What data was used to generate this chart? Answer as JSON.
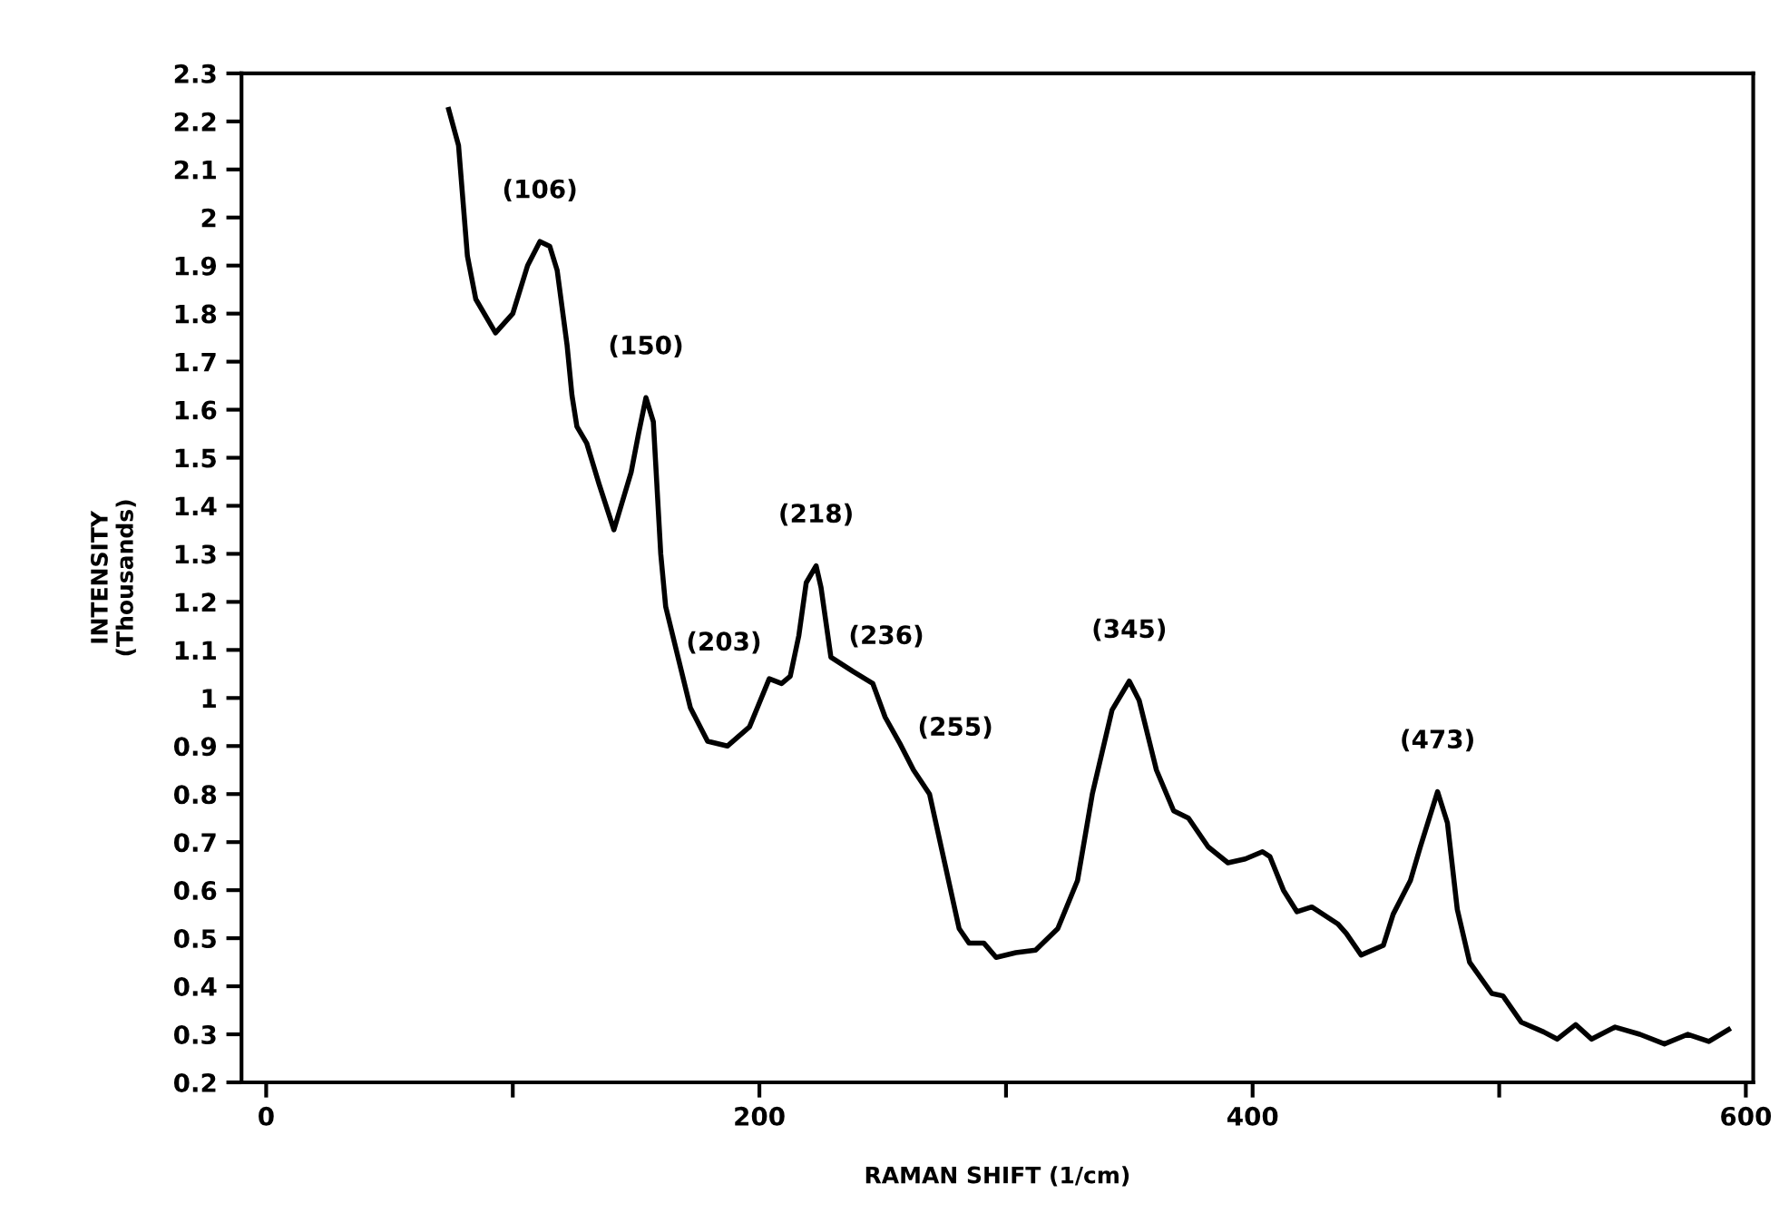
{
  "chart_data": {
    "type": "line",
    "xlabel": "RAMAN SHIFT (1/cm)",
    "ylabel": "INTENSITY\n(Thousands)",
    "xlim": [
      -10,
      603
    ],
    "ylim": [
      0.2,
      2.3
    ],
    "xticks": [
      0,
      {
        "value": 100,
        "label": null
      },
      200,
      {
        "value": 300,
        "label": null
      },
      400,
      {
        "value": 500,
        "label": null
      },
      600
    ],
    "yticks": [
      0.2,
      0.3,
      0.4,
      0.5,
      0.6,
      0.7,
      0.8,
      0.9,
      1,
      1.1,
      1.2,
      1.3,
      1.4,
      1.5,
      1.6,
      1.7,
      1.8,
      1.9,
      2,
      2.1,
      2.2,
      2.3
    ],
    "grid": false,
    "legend": false,
    "marker": "none",
    "line_style": "solid",
    "series": [
      {
        "color": "#000000",
        "x": [
          74,
          78,
          81.6,
          85,
          93,
          100,
          106,
          111,
          115,
          118,
          122,
          124,
          126,
          130,
          135,
          141,
          148,
          151,
          154,
          157,
          160,
          162,
          172,
          179,
          187,
          196,
          204,
          209,
          212.5,
          216,
          219,
          223,
          225,
          229,
          238,
          246,
          251,
          257,
          262.5,
          269,
          275,
          281,
          285,
          291,
          296,
          304,
          312,
          321,
          329,
          335,
          343,
          350,
          354,
          361,
          368,
          374,
          382,
          390,
          397,
          404,
          407,
          412.5,
          418,
          424,
          434.5,
          438,
          444,
          453,
          457,
          464,
          468,
          475,
          479,
          483,
          488,
          497,
          501.5,
          509,
          518,
          523.5,
          531,
          537.5,
          547,
          557,
          567,
          576.5,
          585,
          593
        ],
        "values": [
          2.225,
          2.15,
          1.92,
          1.83,
          1.76,
          1.8,
          1.9,
          1.95,
          1.94,
          1.89,
          1.735,
          1.63,
          1.565,
          1.53,
          1.445,
          1.35,
          1.47,
          1.55,
          1.625,
          1.575,
          1.3,
          1.19,
          0.98,
          0.91,
          0.9,
          0.94,
          1.04,
          1.03,
          1.045,
          1.13,
          1.24,
          1.275,
          1.23,
          1.085,
          1.055,
          1.03,
          0.96,
          0.905,
          0.85,
          0.8,
          0.66,
          0.52,
          0.49,
          0.49,
          0.46,
          0.47,
          0.475,
          0.52,
          0.62,
          0.8,
          0.975,
          1.035,
          0.995,
          0.85,
          0.765,
          0.75,
          0.69,
          0.657,
          0.665,
          0.68,
          0.67,
          0.6,
          0.555,
          0.565,
          0.53,
          0.51,
          0.465,
          0.485,
          0.55,
          0.62,
          0.69,
          0.805,
          0.74,
          0.56,
          0.45,
          0.385,
          0.38,
          0.325,
          0.305,
          0.29,
          0.32,
          0.29,
          0.315,
          0.3,
          0.28,
          0.3,
          0.285,
          0.31
        ]
      }
    ],
    "annotations": [
      {
        "text": "(106)",
        "x": 111,
        "y": 1.95
      },
      {
        "text": "(150)",
        "x": 154,
        "y": 1.625
      },
      {
        "text": "(218)",
        "x": 223,
        "y": 1.275
      },
      {
        "text": "(203)",
        "x": 204,
        "y": 1.04
      },
      {
        "text": "(236)",
        "x": 229,
        "y": 1.085
      },
      {
        "text": "(255)",
        "x": 257,
        "y": 0.905
      },
      {
        "text": "(345)",
        "x": 350,
        "y": 1.035
      },
      {
        "text": "(473)",
        "x": 475,
        "y": 0.805
      }
    ]
  }
}
